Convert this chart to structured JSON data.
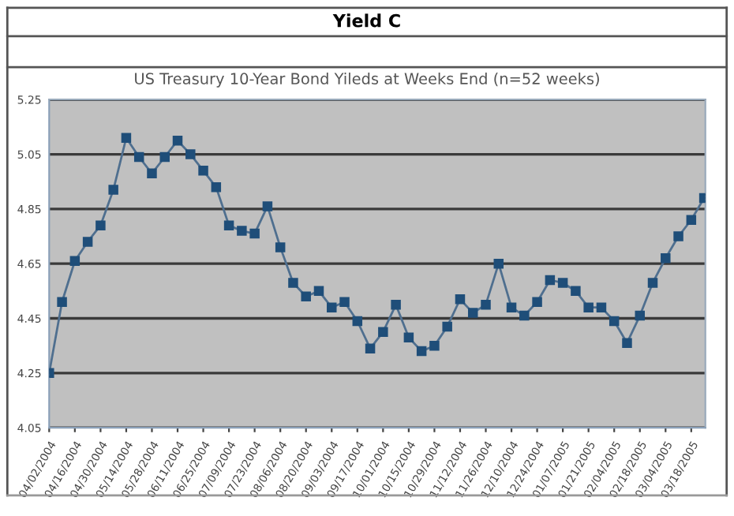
{
  "chart_data": {
    "type": "line",
    "title": "Yield C",
    "subtitle": "US Treasury 10-Year Bond Yileds at Weeks End (n=52 weeks)",
    "categories": [
      "04/02/2004",
      null,
      "04/16/2004",
      null,
      "04/30/2004",
      null,
      "05/14/2004",
      null,
      "05/28/2004",
      null,
      "06/11/2004",
      null,
      "06/25/2004",
      null,
      "07/09/2004",
      null,
      "07/23/2004",
      null,
      "08/06/2004",
      null,
      "08/20/2004",
      null,
      "09/03/2004",
      null,
      "09/17/2004",
      null,
      "10/01/2004",
      null,
      "10/15/2004",
      null,
      "10/29/2004",
      null,
      "11/12/2004",
      null,
      "11/26/2004",
      null,
      "12/10/2004",
      null,
      "12/24/2004",
      null,
      "01/07/2005",
      null,
      "01/21/2005",
      null,
      "02/04/2005",
      null,
      "02/18/2005",
      null,
      "03/04/2005",
      null,
      "03/18/2005",
      null
    ],
    "series": [
      {
        "color": "#1f4e79",
        "values": [
          4.25,
          4.51,
          4.66,
          4.73,
          4.79,
          4.92,
          5.11,
          5.04,
          4.98,
          5.04,
          5.1,
          5.05,
          4.99,
          4.93,
          4.79,
          4.77,
          4.76,
          4.86,
          4.71,
          4.58,
          4.53,
          4.55,
          4.49,
          4.51,
          4.44,
          4.34,
          4.4,
          4.5,
          4.38,
          4.33,
          4.35,
          4.42,
          4.52,
          4.47,
          4.5,
          4.65,
          4.49,
          4.46,
          4.51,
          4.59,
          4.58,
          4.55,
          4.49,
          4.49,
          4.44,
          4.36,
          4.46,
          4.58,
          4.67,
          4.75,
          4.81,
          4.89
        ]
      }
    ],
    "ylim": [
      4.05,
      5.25
    ],
    "yticks": [
      4.05,
      4.25,
      4.45,
      4.65,
      4.85,
      5.05,
      5.25
    ],
    "grid": "y",
    "marker": "square",
    "line_style": "solid"
  }
}
